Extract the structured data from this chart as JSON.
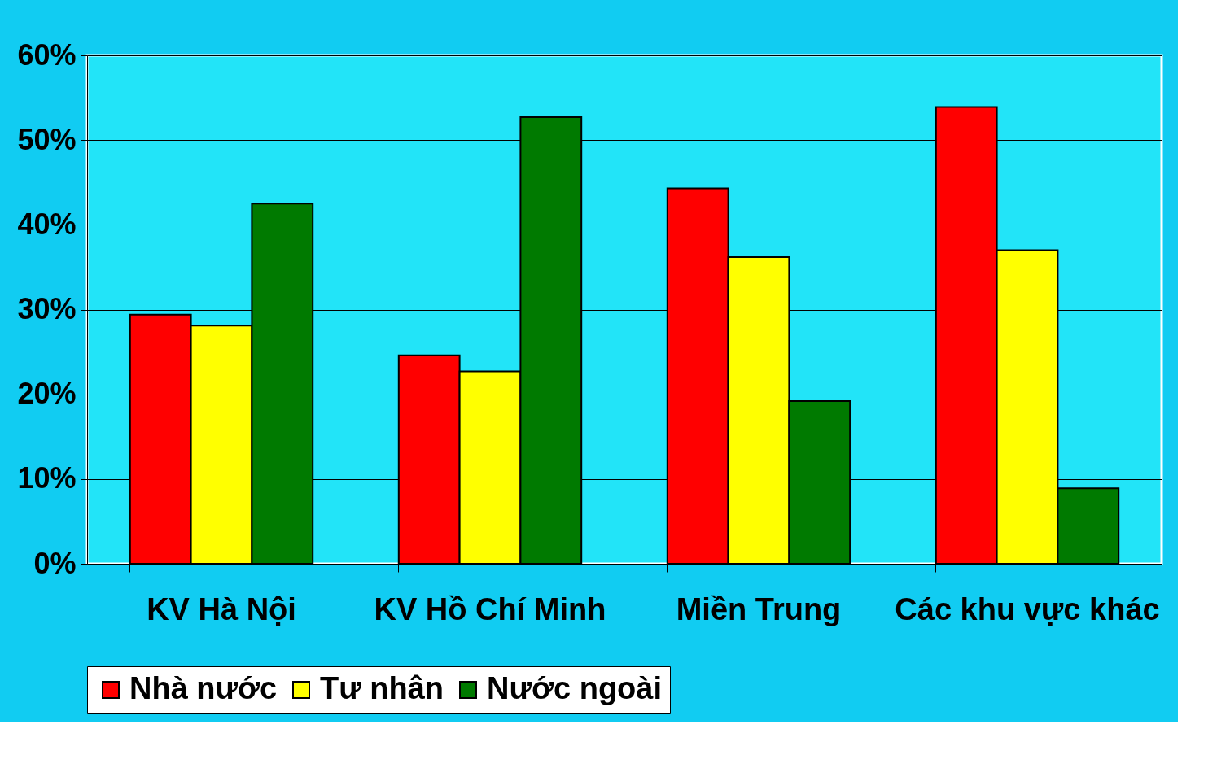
{
  "chart_data": {
    "type": "bar",
    "categories": [
      "KV Hà Nội",
      "KV Hồ Chí Minh",
      "Miền Trung",
      "Các khu vực khác"
    ],
    "series": [
      {
        "name": "Nhà nước",
        "color": "#ff0000",
        "values": [
          29.4,
          24.6,
          44.3,
          53.9
        ]
      },
      {
        "name": "Tư nhân",
        "color": "#ffff00",
        "values": [
          28.1,
          22.7,
          36.2,
          37.0
        ]
      },
      {
        "name": "Nước ngoài",
        "color": "#007a00",
        "values": [
          42.5,
          52.7,
          19.2,
          8.9
        ]
      }
    ],
    "ylim": [
      0,
      60
    ],
    "yticks": [
      {
        "value": 0,
        "label": "0%"
      },
      {
        "value": 10,
        "label": "10%"
      },
      {
        "value": 20,
        "label": "20%"
      },
      {
        "value": 30,
        "label": "30%"
      },
      {
        "value": 40,
        "label": "40%"
      },
      {
        "value": 50,
        "label": "50%"
      },
      {
        "value": 60,
        "label": "60%"
      }
    ],
    "grid": "y",
    "legend": "bottom"
  }
}
